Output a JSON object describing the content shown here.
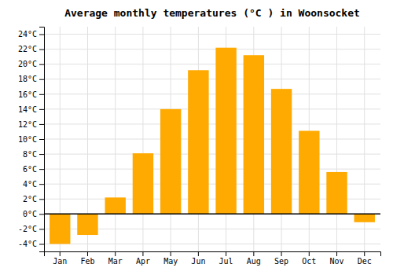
{
  "chart_data": {
    "type": "bar",
    "title": "Average monthly temperatures (°C ) in Woonsocket",
    "categories": [
      "Jan",
      "Feb",
      "Mar",
      "Apr",
      "May",
      "Jun",
      "Jul",
      "Aug",
      "Sep",
      "Oct",
      "Nov",
      "Dec"
    ],
    "values": [
      -4.0,
      -2.8,
      2.2,
      8.1,
      14.0,
      19.2,
      22.2,
      21.2,
      16.7,
      11.1,
      5.6,
      -1.1
    ],
    "color": "#FFAA00",
    "ylim": [
      -5,
      25
    ],
    "yticks": [
      {
        "value": -4,
        "label": "-4°C"
      },
      {
        "value": -2,
        "label": "-2°C"
      },
      {
        "value": 0,
        "label": "0°C"
      },
      {
        "value": 2,
        "label": "2°C"
      },
      {
        "value": 4,
        "label": "4°C"
      },
      {
        "value": 6,
        "label": "6°C"
      },
      {
        "value": 8,
        "label": "8°C"
      },
      {
        "value": 10,
        "label": "10°C"
      },
      {
        "value": 12,
        "label": "12°C"
      },
      {
        "value": 14,
        "label": "14°C"
      },
      {
        "value": 16,
        "label": "16°C"
      },
      {
        "value": 18,
        "label": "18°C"
      },
      {
        "value": 20,
        "label": "20°C"
      },
      {
        "value": 22,
        "label": "22°C"
      },
      {
        "value": 24,
        "label": "24°C"
      }
    ],
    "grid": true
  }
}
